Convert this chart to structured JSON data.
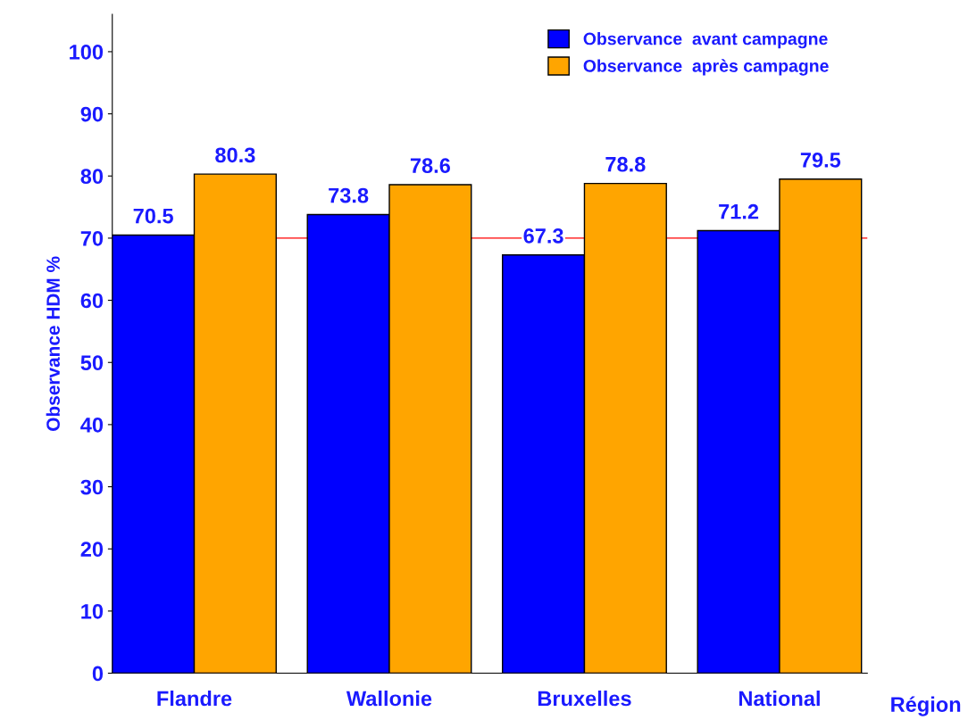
{
  "chart_data": {
    "type": "bar",
    "ylabel": "Observance HDM %",
    "xlabel": "Région",
    "categories": [
      "Flandre",
      "Wallonie",
      "Bruxelles",
      "National"
    ],
    "series": [
      {
        "name": "Observance  avant campagne",
        "color": "#0000ff",
        "values": [
          70.5,
          73.8,
          67.3,
          71.2
        ]
      },
      {
        "name": "Observance  après campagne",
        "color": "#ffa500",
        "values": [
          80.3,
          78.6,
          78.8,
          79.5
        ]
      }
    ],
    "ylim": [
      0,
      106
    ],
    "yticks": [
      0,
      10,
      20,
      30,
      40,
      50,
      60,
      70,
      80,
      90,
      100
    ],
    "ref_lines": [
      {
        "axis": "y",
        "value": 70,
        "color": "#ff0000"
      }
    ],
    "data_labels": true,
    "legend": "top right",
    "grid": false
  }
}
